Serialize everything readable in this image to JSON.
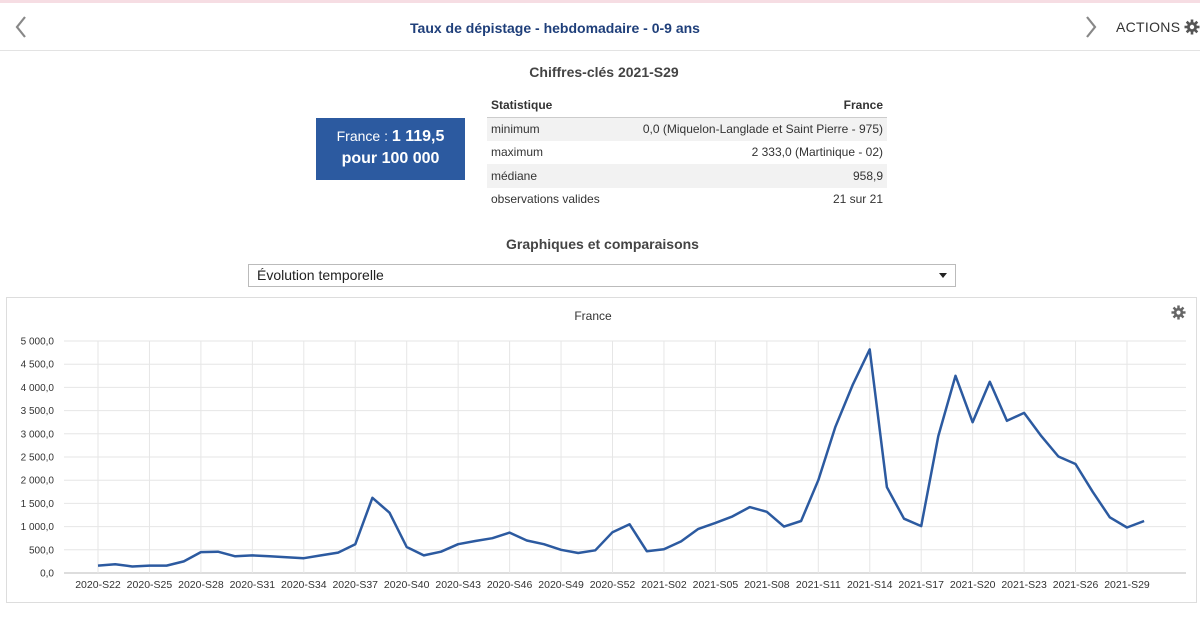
{
  "header": {
    "title": "Taux de dépistage - hebdomadaire - 0-9 ans",
    "actions_label": "ACTIONS",
    "prev_icon": "chevron-left-icon",
    "next_icon": "chevron-right-icon",
    "actions_icon": "gear-icon"
  },
  "key_figures": {
    "title": "Chiffres-clés 2021-S29",
    "box": {
      "label": "France :",
      "value": "1 119,5",
      "unit": "pour 100 000",
      "color": "#2c5aa0"
    },
    "table": {
      "headers": [
        "Statistique",
        "France"
      ],
      "rows": [
        [
          "minimum",
          "0,0 (Miquelon-Langlade et Saint Pierre - 975)"
        ],
        [
          "maximum",
          "2 333,0 (Martinique - 02)"
        ],
        [
          "médiane",
          "958,9"
        ],
        [
          "observations valides",
          "21 sur 21"
        ]
      ]
    }
  },
  "graphs": {
    "title": "Graphiques et comparaisons",
    "select_value": "Évolution temporelle"
  },
  "chart_data": {
    "type": "line",
    "title": "France",
    "line_color": "#2c5aa0",
    "ylim": [
      0,
      5000
    ],
    "yticks": [
      0,
      500,
      1000,
      1500,
      2000,
      2500,
      3000,
      3500,
      4000,
      4500,
      5000
    ],
    "ytick_labels": [
      "0,0",
      "500,0",
      "1 000,0",
      "1 500,0",
      "2 000,0",
      "2 500,0",
      "3 000,0",
      "3 500,0",
      "4 000,0",
      "4 500,0",
      "5 000,0"
    ],
    "xtick_labels": [
      "2020-S22",
      "2020-S25",
      "2020-S28",
      "2020-S31",
      "2020-S34",
      "2020-S37",
      "2020-S40",
      "2020-S43",
      "2020-S46",
      "2020-S49",
      "2020-S52",
      "2021-S02",
      "2021-S05",
      "2021-S08",
      "2021-S11",
      "2021-S14",
      "2021-S17",
      "2021-S20",
      "2021-S23",
      "2021-S26",
      "2021-S29"
    ],
    "grid": true,
    "series": [
      {
        "values": [
          160,
          190,
          140,
          160,
          160,
          250,
          450,
          460,
          360,
          380,
          360,
          340,
          320,
          380,
          440,
          620,
          1620,
          1300,
          560,
          380,
          460,
          620,
          690,
          750,
          870,
          700,
          620,
          500,
          430,
          490,
          880,
          1050,
          470,
          510,
          680,
          950,
          1080,
          1220,
          1420,
          1320,
          1000,
          1120,
          2000,
          3150,
          4050,
          4820,
          1850,
          1170,
          1010,
          2950,
          4250,
          3250,
          4120,
          3280,
          3450,
          2950,
          2510,
          2350,
          1750,
          1200,
          980,
          1120
        ]
      }
    ]
  }
}
